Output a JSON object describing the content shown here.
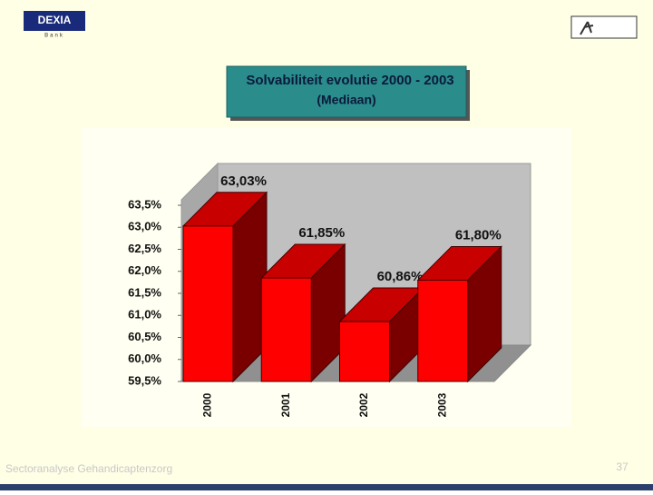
{
  "header": {
    "logo_left": "DEXIA",
    "logo_left_sub": "Bank"
  },
  "chart_data": {
    "type": "bar3d",
    "title": "Solvabiliteit evolutie 2000 - 2003",
    "subtitle": "(Mediaan)",
    "categories": [
      "2000",
      "2001",
      "2002",
      "2003"
    ],
    "values": [
      63.03,
      61.85,
      60.86,
      61.8
    ],
    "value_labels": [
      "63,03%",
      "61,85%",
      "60,86%",
      "61,80%"
    ],
    "color": "#ff0000",
    "ylim": [
      59.5,
      63.5
    ],
    "yticks": [
      {
        "value": 59.5,
        "label": "59,5%"
      },
      {
        "value": 60.0,
        "label": "60,0%"
      },
      {
        "value": 60.5,
        "label": "60,5%"
      },
      {
        "value": 61.0,
        "label": "61,0%"
      },
      {
        "value": 61.5,
        "label": "61,5%"
      },
      {
        "value": 62.0,
        "label": "62,0%"
      },
      {
        "value": 62.5,
        "label": "62,5%"
      },
      {
        "value": 63.0,
        "label": "63,0%"
      },
      {
        "value": 63.5,
        "label": "63,5%"
      }
    ]
  },
  "footer": {
    "text": "Sectoranalyse Gehandicaptenzorg",
    "page": "37"
  }
}
